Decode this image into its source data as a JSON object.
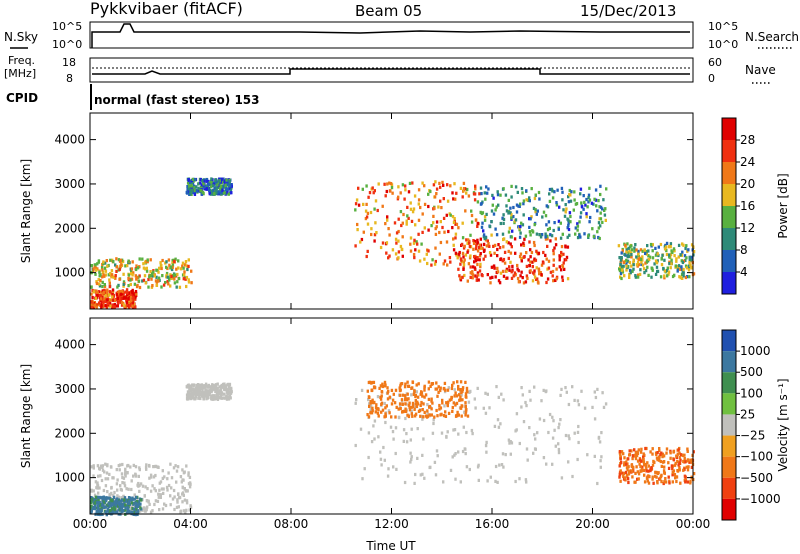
{
  "header": {
    "station": "Pykkvibaer (fitACF)",
    "beam": "Beam 05",
    "date": "15/Dec/2013"
  },
  "status_panels": {
    "nsky_label": "N.Sky",
    "freq_label_line1": "Freq.",
    "freq_label_line2": "[MHz]",
    "cpid_label": "CPID",
    "nsearch_label": "N.Search",
    "nave_label": "Nave",
    "nsky_ticks": [
      "10^5",
      "10^0"
    ],
    "nsearch_ticks": [
      "10^5",
      "10^0"
    ],
    "freq_ticks": [
      "18",
      "8"
    ],
    "nave_ticks": [
      "60",
      "0"
    ],
    "cpid_text": "normal (fast stereo) 153"
  },
  "chart_data": [
    {
      "type": "heatmap",
      "title": "",
      "xlabel": "",
      "ylabel": "Slant Range [km]",
      "x_ticks": [
        "00:00",
        "04:00",
        "08:00",
        "12:00",
        "16:00",
        "20:00",
        "00:00"
      ],
      "y_ticks": [
        1000,
        2000,
        3000,
        4000
      ],
      "xlim": [
        0,
        24
      ],
      "ylim": [
        180,
        4600
      ],
      "colorbar": {
        "label": "Power [dB]",
        "ticks": [
          4,
          8,
          12,
          16,
          20,
          24,
          28
        ],
        "colors": [
          "#1f1fdf",
          "#2060b8",
          "#2e8a78",
          "#58b040",
          "#e8b820",
          "#f07818",
          "#f03010",
          "#e00000"
        ]
      },
      "regions": [
        {
          "t": [
            0.0,
            1.8
          ],
          "r": [
            250,
            650
          ],
          "value": 26
        },
        {
          "t": [
            0.0,
            4.0
          ],
          "r": [
            700,
            1350
          ],
          "value": 18
        },
        {
          "t": [
            3.8,
            5.6
          ],
          "r": [
            2800,
            3150
          ],
          "value": 8
        },
        {
          "t": [
            10.5,
            15.5
          ],
          "r": [
            1200,
            3100
          ],
          "value": 22
        },
        {
          "t": [
            14.5,
            19.0
          ],
          "r": [
            800,
            1800
          ],
          "value": 26
        },
        {
          "t": [
            15.5,
            20.5
          ],
          "r": [
            1800,
            3000
          ],
          "value": 10
        },
        {
          "t": [
            21.0,
            24.0
          ],
          "r": [
            900,
            1700
          ],
          "value": 14
        }
      ]
    },
    {
      "type": "heatmap",
      "title": "",
      "xlabel": "Time UT",
      "ylabel": "Slant Range [km]",
      "x_ticks": [
        "00:00",
        "04:00",
        "08:00",
        "12:00",
        "16:00",
        "20:00",
        "00:00"
      ],
      "y_ticks": [
        1000,
        2000,
        3000,
        4000
      ],
      "xlim": [
        0,
        24
      ],
      "ylim": [
        180,
        4600
      ],
      "colorbar": {
        "label": "Velocity [m s⁻¹]",
        "ticks": [
          "1000",
          "500",
          "100",
          "25",
          "−25",
          "−100",
          "−500",
          "−1000"
        ],
        "colors": [
          "#2050b0",
          "#3c78a0",
          "#3f8f50",
          "#70c040",
          "#c0c0bc",
          "#f0a020",
          "#f07818",
          "#f04010",
          "#e00000"
        ]
      },
      "regions": [
        {
          "t": [
            0.0,
            4.0
          ],
          "r": [
            250,
            1350
          ],
          "value": 0
        },
        {
          "t": [
            3.8,
            5.6
          ],
          "r": [
            2800,
            3150
          ],
          "value": 0
        },
        {
          "t": [
            10.5,
            20.5
          ],
          "r": [
            900,
            3100
          ],
          "value": 0
        },
        {
          "t": [
            11.0,
            15.0
          ],
          "r": [
            2400,
            3200
          ],
          "value": -300
        },
        {
          "t": [
            21.0,
            24.0
          ],
          "r": [
            900,
            1700
          ],
          "value": -400
        },
        {
          "t": [
            0.0,
            2.0
          ],
          "r": [
            200,
            600
          ],
          "value": 600
        }
      ]
    }
  ]
}
